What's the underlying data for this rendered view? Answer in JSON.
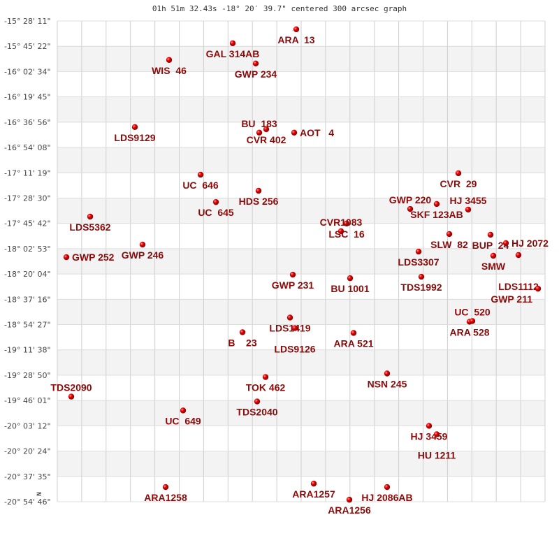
{
  "chart_data": {
    "type": "scatter",
    "title": "01h 51m 32.43s -18° 20′ 39.7\" centered 300 arcsec graph",
    "xlabel": "",
    "ylabel": "",
    "compass_label": "N",
    "y_tick_labels": [
      "-15° 28' 11\"",
      "-15° 45' 22\"",
      "-16° 02' 34\"",
      "-16° 19' 45\"",
      "-16° 36' 56\"",
      "-16° 54' 08\"",
      "-17° 11' 19\"",
      "-17° 28' 30\"",
      "-17° 45' 42\"",
      "-18° 02' 53\"",
      "-18° 20' 04\"",
      "-18° 37' 16\"",
      "-18° 54' 27\"",
      "-19° 11' 38\"",
      "-19° 28' 50\"",
      "-19° 46' 01\"",
      "-20° 03' 12\"",
      "-20° 20' 24\"",
      "-20° 37' 35\"",
      "-20° 54' 46\""
    ],
    "ylim_deg": [
      -20.9128,
      -15.4697
    ],
    "grid": true,
    "point_color": "#d40000",
    "label_color": "#8b0a0a",
    "points": [
      {
        "name": "ARA  13",
        "dec": -15.564
      },
      {
        "name": "GAL 314AB",
        "dec": -15.722
      },
      {
        "name": "GWP 234",
        "dec": -15.951
      },
      {
        "name": "WIS  46",
        "dec": -15.911
      },
      {
        "name": "LDS9129",
        "dec": -16.671
      },
      {
        "name": "CVR 402",
        "dec": -16.695
      },
      {
        "name": "BU  183",
        "dec": -16.734
      },
      {
        "name": "AOT   4",
        "dec": -16.734
      },
      {
        "name": "UC  646",
        "dec": -17.21
      },
      {
        "name": "HDS 256",
        "dec": -17.392
      },
      {
        "name": "UC  645",
        "dec": -17.52
      },
      {
        "name": "LDS5362",
        "dec": -17.685
      },
      {
        "name": "GWP 246",
        "dec": -18.002
      },
      {
        "name": "GWP 252",
        "dec": -18.144
      },
      {
        "name": "CVR  29",
        "dec": -17.194
      },
      {
        "name": "SKF 123AB",
        "dec": -17.542
      },
      {
        "name": "GWP 220",
        "dec": -17.598
      },
      {
        "name": "HJ 3455",
        "dec": -17.605
      },
      {
        "name": "LSC  16",
        "dec": -17.763
      },
      {
        "name": "CVR1083",
        "dec": -17.85
      },
      {
        "name": "SLW  82",
        "dec": -17.882
      },
      {
        "name": "BUP  24",
        "dec": -17.89
      },
      {
        "name": "HJ 2072",
        "dec": -17.985
      },
      {
        "name": "SMW",
        "dec": -18.128
      },
      {
        "name": "LDS1112",
        "dec": -18.12
      },
      {
        "name": "LDS3307",
        "dec": -18.081
      },
      {
        "name": "GWP 231",
        "dec": -18.342
      },
      {
        "name": "BU 1001",
        "dec": -18.382
      },
      {
        "name": "TDS1992",
        "dec": -18.366
      },
      {
        "name": "GWP 211",
        "dec": -18.501
      },
      {
        "name": "LDS1419",
        "dec": -18.828
      },
      {
        "name": "LDS9126",
        "dec": -18.947
      },
      {
        "name": "B    23",
        "dec": -18.994
      },
      {
        "name": "ARA 521",
        "dec": -19.002
      },
      {
        "name": "ARA 528",
        "dec": -18.875
      },
      {
        "name": "UC  520",
        "dec": -18.867
      },
      {
        "name": "NSN 245",
        "dec": -19.461
      },
      {
        "name": "TOK 462",
        "dec": -19.501
      },
      {
        "name": "TDS2090",
        "dec": -19.723
      },
      {
        "name": "TDS2040",
        "dec": -19.778
      },
      {
        "name": "UC  649",
        "dec": -19.88
      },
      {
        "name": "HJ 3459",
        "dec": -20.054
      },
      {
        "name": "HU 1211",
        "dec": -20.149
      },
      {
        "name": "ARA1258",
        "dec": -20.747
      },
      {
        "name": "ARA1257",
        "dec": -20.708
      },
      {
        "name": "HJ 2086AB",
        "dec": -20.747
      },
      {
        "name": "ARA1256",
        "dec": -20.89
      }
    ]
  }
}
